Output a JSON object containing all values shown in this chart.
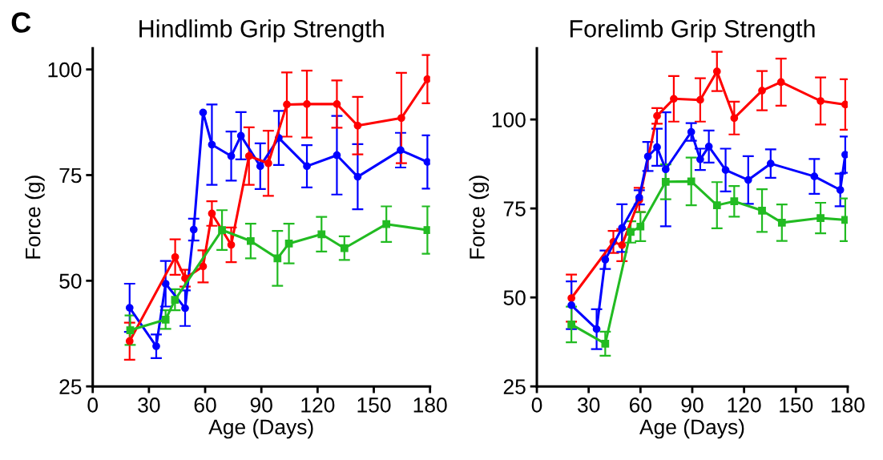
{
  "chart_data": [
    {
      "type": "line",
      "title": "Hindlimb Grip Strength",
      "xlabel": "Age (Days)",
      "ylabel": "Force (g)",
      "annotations": [
        "C"
      ],
      "xlim": [
        0,
        180
      ],
      "xticks": [
        0,
        30,
        60,
        90,
        120,
        150,
        180
      ],
      "ylim": [
        25,
        105
      ],
      "yticks": [
        25,
        50,
        75,
        100
      ],
      "grid": false,
      "series": [
        {
          "color": "#0000ff",
          "marker": "circle",
          "x": [
            19.7,
            33.9,
            38.9,
            49.3,
            53.9,
            58.9,
            63.6,
            73.9,
            79.1,
            89.4,
            99.3,
            114.3,
            130.3,
            141.4,
            164.3,
            178.6
          ],
          "values": [
            43.6,
            34.5,
            49.3,
            43.5,
            62.1,
            89.8,
            82.2,
            79.5,
            84.3,
            77.1,
            83.8,
            77.1,
            79.7,
            74.6,
            80.9,
            78.1
          ],
          "errors": [
            5.7,
            2.8,
            5.4,
            4.2,
            2.6,
            null,
            9.5,
            5.8,
            5.6,
            5.4,
            6.4,
            5,
            9.3,
            7.7,
            4.1,
            6.3
          ]
        },
        {
          "color": "#ff0000",
          "marker": "circle",
          "x": [
            19.7,
            44,
            49.3,
            58.9,
            63.6,
            73.9,
            83.4,
            93.7,
            103.6,
            114.3,
            130.3,
            141.4,
            164.7,
            178.6
          ],
          "values": [
            35.7,
            55.6,
            50.6,
            53.4,
            65.9,
            58.5,
            79.5,
            77.8,
            91.7,
            91.8,
            91.8,
            86.7,
            88.5,
            97.7
          ],
          "errors": [
            4.4,
            4.2,
            2,
            3.8,
            2.9,
            4.1,
            6.8,
            7.7,
            7.6,
            7.9,
            5.6,
            6.8,
            10.7,
            5.7
          ]
        },
        {
          "color": "#22bb22",
          "marker": "square",
          "x": [
            20,
            38.9,
            43.9,
            69,
            84.3,
            98.6,
            104.7,
            122.1,
            134.3,
            156.7,
            178.6
          ],
          "values": [
            38.3,
            40.8,
            45.5,
            62,
            59.4,
            55.3,
            58.8,
            61,
            57.7,
            63.4,
            62
          ],
          "errors": [
            3.5,
            2.2,
            2.5,
            4.7,
            4.1,
            6.5,
            4.7,
            4.1,
            2.8,
            4.2,
            5.6
          ]
        }
      ]
    },
    {
      "type": "line",
      "title": "Forelimb Grip Strength",
      "xlabel": "Age (Days)",
      "ylabel": "Force (g)",
      "xlim": [
        0,
        180
      ],
      "xticks": [
        0,
        30,
        60,
        90,
        120,
        150,
        180
      ],
      "ylim": [
        25,
        120
      ],
      "yticks": [
        25,
        50,
        75,
        100
      ],
      "grid": false,
      "series": [
        {
          "color": "#ff0000",
          "marker": "circle",
          "x": [
            20,
            44.3,
            49.3,
            59.3,
            69.6,
            79.3,
            94.6,
            104.3,
            114.3,
            130.4,
            141.4,
            164.3,
            178.6
          ],
          "values": [
            49.8,
            65.6,
            64.7,
            77.4,
            101,
            105.8,
            105.5,
            113.5,
            100.4,
            108.1,
            110.5,
            105.2,
            104.2
          ],
          "errors": [
            6.6,
            3.1,
            4.5,
            3.4,
            2.2,
            6.4,
            6.1,
            5.5,
            4.6,
            5.5,
            6.6,
            6.6,
            7.1
          ]
        },
        {
          "color": "#0000ff",
          "marker": "circle",
          "x": [
            20,
            34.6,
            39.6,
            49.3,
            59.3,
            64.3,
            69.6,
            74.6,
            89.4,
            94.6,
            99.6,
            109.3,
            122.4,
            135.4,
            160.7,
            175.7,
            178.6
          ],
          "values": [
            47.8,
            41.1,
            60.6,
            69.5,
            78.1,
            89.6,
            92.2,
            86,
            96.5,
            88.8,
            92.4,
            85.8,
            83,
            87.6,
            84,
            80.2,
            90.1
          ],
          "errors": [
            6.7,
            5.6,
            2.6,
            6.7,
            2,
            4.1,
            5.2,
            16,
            2.5,
            3,
            4.5,
            6,
            6.7,
            4,
            4.9,
            4.6,
            5.1
          ]
        },
        {
          "color": "#22bb22",
          "marker": "square",
          "x": [
            20,
            39.6,
            54.3,
            60,
            74.6,
            89.4,
            104.3,
            114.3,
            130.4,
            141.9,
            164.3,
            178.6
          ],
          "values": [
            42.4,
            37,
            68.4,
            69.9,
            82.5,
            82.6,
            75.9,
            77,
            74.4,
            71,
            72.3,
            71.8
          ],
          "errors": [
            5,
            3.4,
            3,
            4.1,
            4.9,
            6.7,
            6.5,
            4.3,
            6,
            5.1,
            4.3,
            6
          ]
        }
      ]
    }
  ]
}
